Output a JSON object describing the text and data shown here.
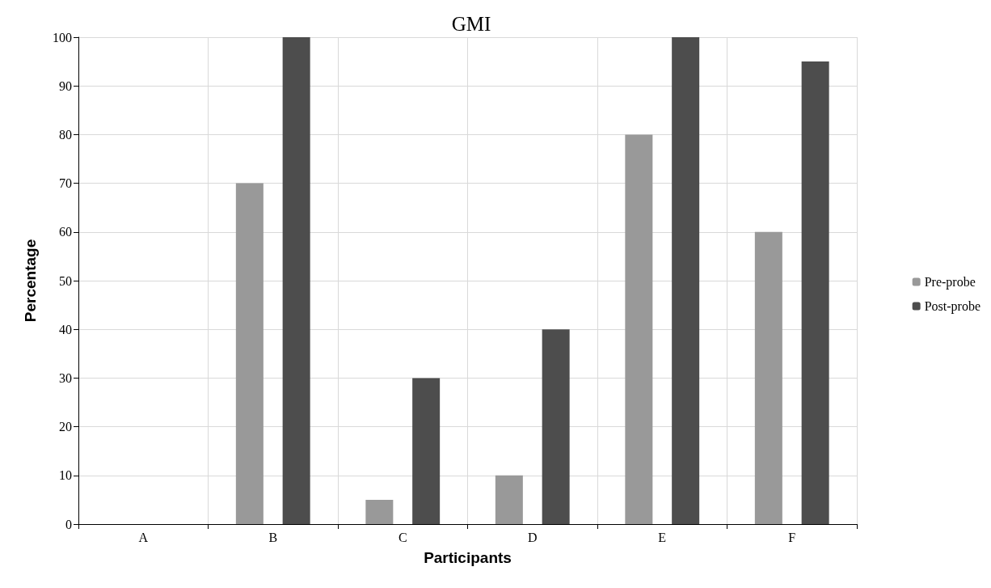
{
  "chart_data": {
    "type": "bar",
    "title": "GMI",
    "xlabel": "Participants",
    "ylabel": "Percentage",
    "categories": [
      "A",
      "B",
      "C",
      "D",
      "E",
      "F"
    ],
    "series": [
      {
        "name": "Pre-probe",
        "color": "#999999",
        "values": [
          0,
          70,
          5,
          10,
          80,
          60
        ]
      },
      {
        "name": "Post-probe",
        "color": "#4d4d4d",
        "values": [
          0,
          100,
          30,
          40,
          100,
          95
        ]
      }
    ],
    "ylim": [
      0,
      100
    ],
    "yticks": [
      0,
      10,
      20,
      30,
      40,
      50,
      60,
      70,
      80,
      90,
      100
    ],
    "grid": true,
    "legend": "right"
  }
}
